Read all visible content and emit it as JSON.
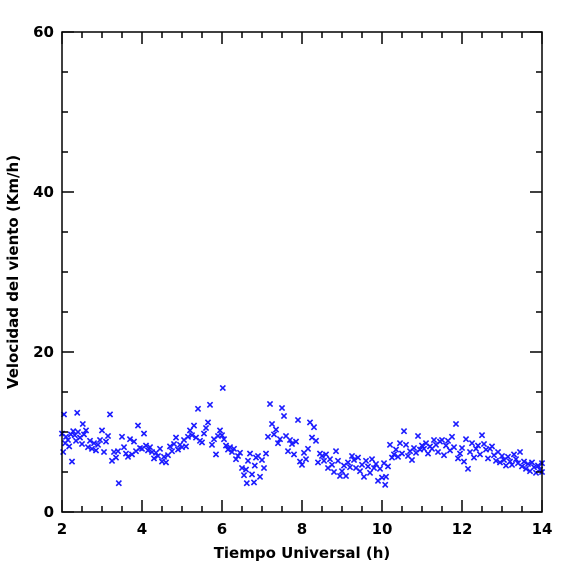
{
  "chart_data": {
    "type": "scatter",
    "title": "",
    "xlabel": "Tiempo Universal (h)",
    "ylabel": "Velocidad del viento (Km/h)",
    "xlim": [
      2,
      14
    ],
    "ylim": [
      0,
      60
    ],
    "xticks": [
      2,
      4,
      6,
      8,
      10,
      12,
      14
    ],
    "yticks": [
      0,
      20,
      40,
      60
    ],
    "x_minor_step": 0.5,
    "y_minor_step": 5,
    "marker": "x",
    "color": "#1a1aff",
    "grid": false,
    "legend": "none",
    "series": [
      {
        "name": "",
        "points": [
          [
            2.0,
            9.8
          ],
          [
            2.03,
            7.5
          ],
          [
            2.05,
            12.2
          ],
          [
            2.08,
            8.6
          ],
          [
            2.1,
            9.4
          ],
          [
            2.15,
            9.0
          ],
          [
            2.18,
            8.2
          ],
          [
            2.22,
            9.7
          ],
          [
            2.25,
            6.3
          ],
          [
            2.28,
            10.1
          ],
          [
            2.32,
            9.6
          ],
          [
            2.35,
            8.9
          ],
          [
            2.38,
            12.4
          ],
          [
            2.4,
            10.0
          ],
          [
            2.45,
            9.3
          ],
          [
            2.5,
            8.5
          ],
          [
            2.52,
            11.0
          ],
          [
            2.55,
            9.7
          ],
          [
            2.6,
            10.2
          ],
          [
            2.65,
            8.1
          ],
          [
            2.7,
            8.9
          ],
          [
            2.75,
            7.9
          ],
          [
            2.8,
            8.6
          ],
          [
            2.85,
            7.7
          ],
          [
            2.9,
            8.4
          ],
          [
            2.95,
            9.0
          ],
          [
            3.0,
            10.2
          ],
          [
            3.05,
            7.5
          ],
          [
            3.1,
            8.8
          ],
          [
            3.15,
            9.5
          ],
          [
            3.2,
            12.2
          ],
          [
            3.25,
            6.4
          ],
          [
            3.3,
            7.5
          ],
          [
            3.35,
            6.8
          ],
          [
            3.4,
            7.6
          ],
          [
            3.42,
            3.6
          ],
          [
            3.5,
            9.4
          ],
          [
            3.55,
            8.1
          ],
          [
            3.6,
            7.3
          ],
          [
            3.65,
            6.9
          ],
          [
            3.7,
            9.1
          ],
          [
            3.75,
            7.2
          ],
          [
            3.8,
            8.8
          ],
          [
            3.85,
            7.6
          ],
          [
            3.9,
            10.8
          ],
          [
            3.95,
            8.0
          ],
          [
            4.0,
            7.9
          ],
          [
            4.05,
            9.8
          ],
          [
            4.1,
            8.3
          ],
          [
            4.15,
            7.7
          ],
          [
            4.2,
            8.1
          ],
          [
            4.25,
            7.5
          ],
          [
            4.3,
            6.7
          ],
          [
            4.35,
            7.4
          ],
          [
            4.4,
            7.0
          ],
          [
            4.45,
            7.9
          ],
          [
            4.5,
            6.3
          ],
          [
            4.55,
            6.9
          ],
          [
            4.6,
            6.2
          ],
          [
            4.65,
            7.1
          ],
          [
            4.7,
            8.2
          ],
          [
            4.75,
            7.6
          ],
          [
            4.8,
            8.5
          ],
          [
            4.85,
            9.3
          ],
          [
            4.9,
            7.8
          ],
          [
            4.95,
            8.4
          ],
          [
            5.0,
            8.1
          ],
          [
            5.05,
            9.0
          ],
          [
            5.1,
            8.2
          ],
          [
            5.15,
            9.4
          ],
          [
            5.2,
            10.2
          ],
          [
            5.25,
            9.6
          ],
          [
            5.3,
            10.8
          ],
          [
            5.35,
            9.3
          ],
          [
            5.4,
            12.9
          ],
          [
            5.45,
            8.9
          ],
          [
            5.5,
            8.7
          ],
          [
            5.55,
            9.8
          ],
          [
            5.6,
            10.5
          ],
          [
            5.65,
            11.2
          ],
          [
            5.7,
            13.4
          ],
          [
            5.75,
            8.4
          ],
          [
            5.8,
            9.1
          ],
          [
            5.85,
            7.2
          ],
          [
            5.9,
            9.5
          ],
          [
            5.95,
            10.2
          ],
          [
            6.0,
            9.6
          ],
          [
            6.02,
            15.5
          ],
          [
            6.05,
            9.1
          ],
          [
            6.1,
            8.3
          ],
          [
            6.15,
            7.8
          ],
          [
            6.2,
            8.1
          ],
          [
            6.25,
            7.5
          ],
          [
            6.3,
            7.9
          ],
          [
            6.35,
            6.6
          ],
          [
            6.4,
            7.0
          ],
          [
            6.45,
            7.4
          ],
          [
            6.5,
            5.5
          ],
          [
            6.55,
            4.6
          ],
          [
            6.6,
            5.3
          ],
          [
            6.62,
            3.6
          ],
          [
            6.65,
            6.4
          ],
          [
            6.7,
            7.3
          ],
          [
            6.75,
            4.7
          ],
          [
            6.8,
            3.7
          ],
          [
            6.82,
            5.8
          ],
          [
            6.85,
            6.8
          ],
          [
            6.9,
            7.0
          ],
          [
            6.95,
            4.4
          ],
          [
            7.0,
            6.5
          ],
          [
            7.05,
            5.5
          ],
          [
            7.1,
            7.3
          ],
          [
            7.15,
            9.4
          ],
          [
            7.2,
            13.5
          ],
          [
            7.25,
            11.0
          ],
          [
            7.3,
            9.7
          ],
          [
            7.35,
            10.3
          ],
          [
            7.4,
            8.6
          ],
          [
            7.45,
            9.1
          ],
          [
            7.5,
            13.0
          ],
          [
            7.55,
            12.0
          ],
          [
            7.6,
            9.5
          ],
          [
            7.65,
            7.6
          ],
          [
            7.7,
            9.0
          ],
          [
            7.75,
            8.5
          ],
          [
            7.8,
            7.2
          ],
          [
            7.85,
            8.8
          ],
          [
            7.9,
            11.5
          ],
          [
            7.95,
            6.3
          ],
          [
            8.0,
            5.9
          ],
          [
            8.05,
            7.4
          ],
          [
            8.1,
            6.6
          ],
          [
            8.15,
            7.9
          ],
          [
            8.2,
            11.2
          ],
          [
            8.25,
            9.3
          ],
          [
            8.3,
            10.6
          ],
          [
            8.35,
            8.9
          ],
          [
            8.4,
            6.2
          ],
          [
            8.45,
            7.3
          ],
          [
            8.5,
            7.0
          ],
          [
            8.55,
            6.4
          ],
          [
            8.6,
            7.2
          ],
          [
            8.65,
            5.5
          ],
          [
            8.7,
            6.6
          ],
          [
            8.75,
            5.9
          ],
          [
            8.8,
            5.0
          ],
          [
            8.85,
            7.6
          ],
          [
            8.9,
            6.4
          ],
          [
            8.95,
            4.5
          ],
          [
            9.0,
            5.1
          ],
          [
            9.05,
            5.8
          ],
          [
            9.1,
            4.5
          ],
          [
            9.15,
            6.2
          ],
          [
            9.2,
            5.6
          ],
          [
            9.25,
            7.0
          ],
          [
            9.3,
            6.5
          ],
          [
            9.35,
            5.5
          ],
          [
            9.4,
            6.8
          ],
          [
            9.45,
            5.1
          ],
          [
            9.5,
            5.9
          ],
          [
            9.55,
            4.4
          ],
          [
            9.6,
            6.4
          ],
          [
            9.65,
            5.7
          ],
          [
            9.7,
            4.9
          ],
          [
            9.75,
            6.6
          ],
          [
            9.8,
            5.5
          ],
          [
            9.85,
            6.0
          ],
          [
            9.9,
            3.9
          ],
          [
            9.95,
            5.4
          ],
          [
            10.0,
            4.3
          ],
          [
            10.05,
            6.1
          ],
          [
            10.08,
            3.4
          ],
          [
            10.1,
            4.4
          ],
          [
            10.15,
            5.7
          ],
          [
            10.2,
            8.4
          ],
          [
            10.25,
            6.8
          ],
          [
            10.3,
            7.2
          ],
          [
            10.35,
            7.8
          ],
          [
            10.4,
            6.9
          ],
          [
            10.45,
            8.6
          ],
          [
            10.5,
            7.3
          ],
          [
            10.55,
            10.1
          ],
          [
            10.6,
            8.4
          ],
          [
            10.65,
            7.0
          ],
          [
            10.7,
            7.6
          ],
          [
            10.75,
            6.5
          ],
          [
            10.8,
            8.0
          ],
          [
            10.85,
            7.4
          ],
          [
            10.9,
            9.5
          ],
          [
            10.95,
            7.8
          ],
          [
            11.0,
            8.3
          ],
          [
            11.05,
            7.9
          ],
          [
            11.1,
            8.6
          ],
          [
            11.15,
            7.3
          ],
          [
            11.2,
            8.2
          ],
          [
            11.25,
            7.9
          ],
          [
            11.3,
            9.0
          ],
          [
            11.35,
            8.4
          ],
          [
            11.4,
            7.5
          ],
          [
            11.45,
            8.8
          ],
          [
            11.5,
            9.0
          ],
          [
            11.55,
            7.1
          ],
          [
            11.6,
            8.3
          ],
          [
            11.65,
            8.9
          ],
          [
            11.7,
            7.7
          ],
          [
            11.75,
            9.4
          ],
          [
            11.8,
            8.1
          ],
          [
            11.85,
            11.0
          ],
          [
            11.9,
            6.7
          ],
          [
            11.95,
            7.3
          ],
          [
            12.0,
            8.0
          ],
          [
            12.05,
            6.3
          ],
          [
            12.1,
            9.1
          ],
          [
            12.15,
            5.4
          ],
          [
            12.2,
            7.5
          ],
          [
            12.25,
            8.6
          ],
          [
            12.3,
            6.8
          ],
          [
            12.35,
            7.9
          ],
          [
            12.4,
            8.3
          ],
          [
            12.45,
            7.2
          ],
          [
            12.5,
            9.6
          ],
          [
            12.55,
            8.5
          ],
          [
            12.6,
            7.8
          ],
          [
            12.65,
            6.7
          ],
          [
            12.7,
            7.9
          ],
          [
            12.75,
            8.2
          ],
          [
            12.8,
            7.1
          ],
          [
            12.85,
            6.4
          ],
          [
            12.9,
            7.5
          ],
          [
            12.95,
            6.2
          ],
          [
            13.0,
            7.0
          ],
          [
            13.05,
            6.5
          ],
          [
            13.1,
            5.8
          ],
          [
            13.15,
            6.9
          ],
          [
            13.2,
            6.3
          ],
          [
            13.25,
            5.9
          ],
          [
            13.3,
            7.2
          ],
          [
            13.35,
            6.6
          ],
          [
            13.4,
            6.1
          ],
          [
            13.45,
            7.5
          ],
          [
            13.5,
            5.7
          ],
          [
            13.55,
            6.3
          ],
          [
            13.6,
            5.4
          ],
          [
            13.65,
            6.0
          ],
          [
            13.7,
            5.1
          ],
          [
            13.75,
            6.2
          ],
          [
            13.8,
            5.6
          ],
          [
            13.85,
            4.9
          ],
          [
            13.9,
            5.8
          ],
          [
            13.95,
            5.3
          ],
          [
            14.0,
            5.0
          ],
          [
            14.0,
            6.1
          ]
        ]
      }
    ]
  }
}
